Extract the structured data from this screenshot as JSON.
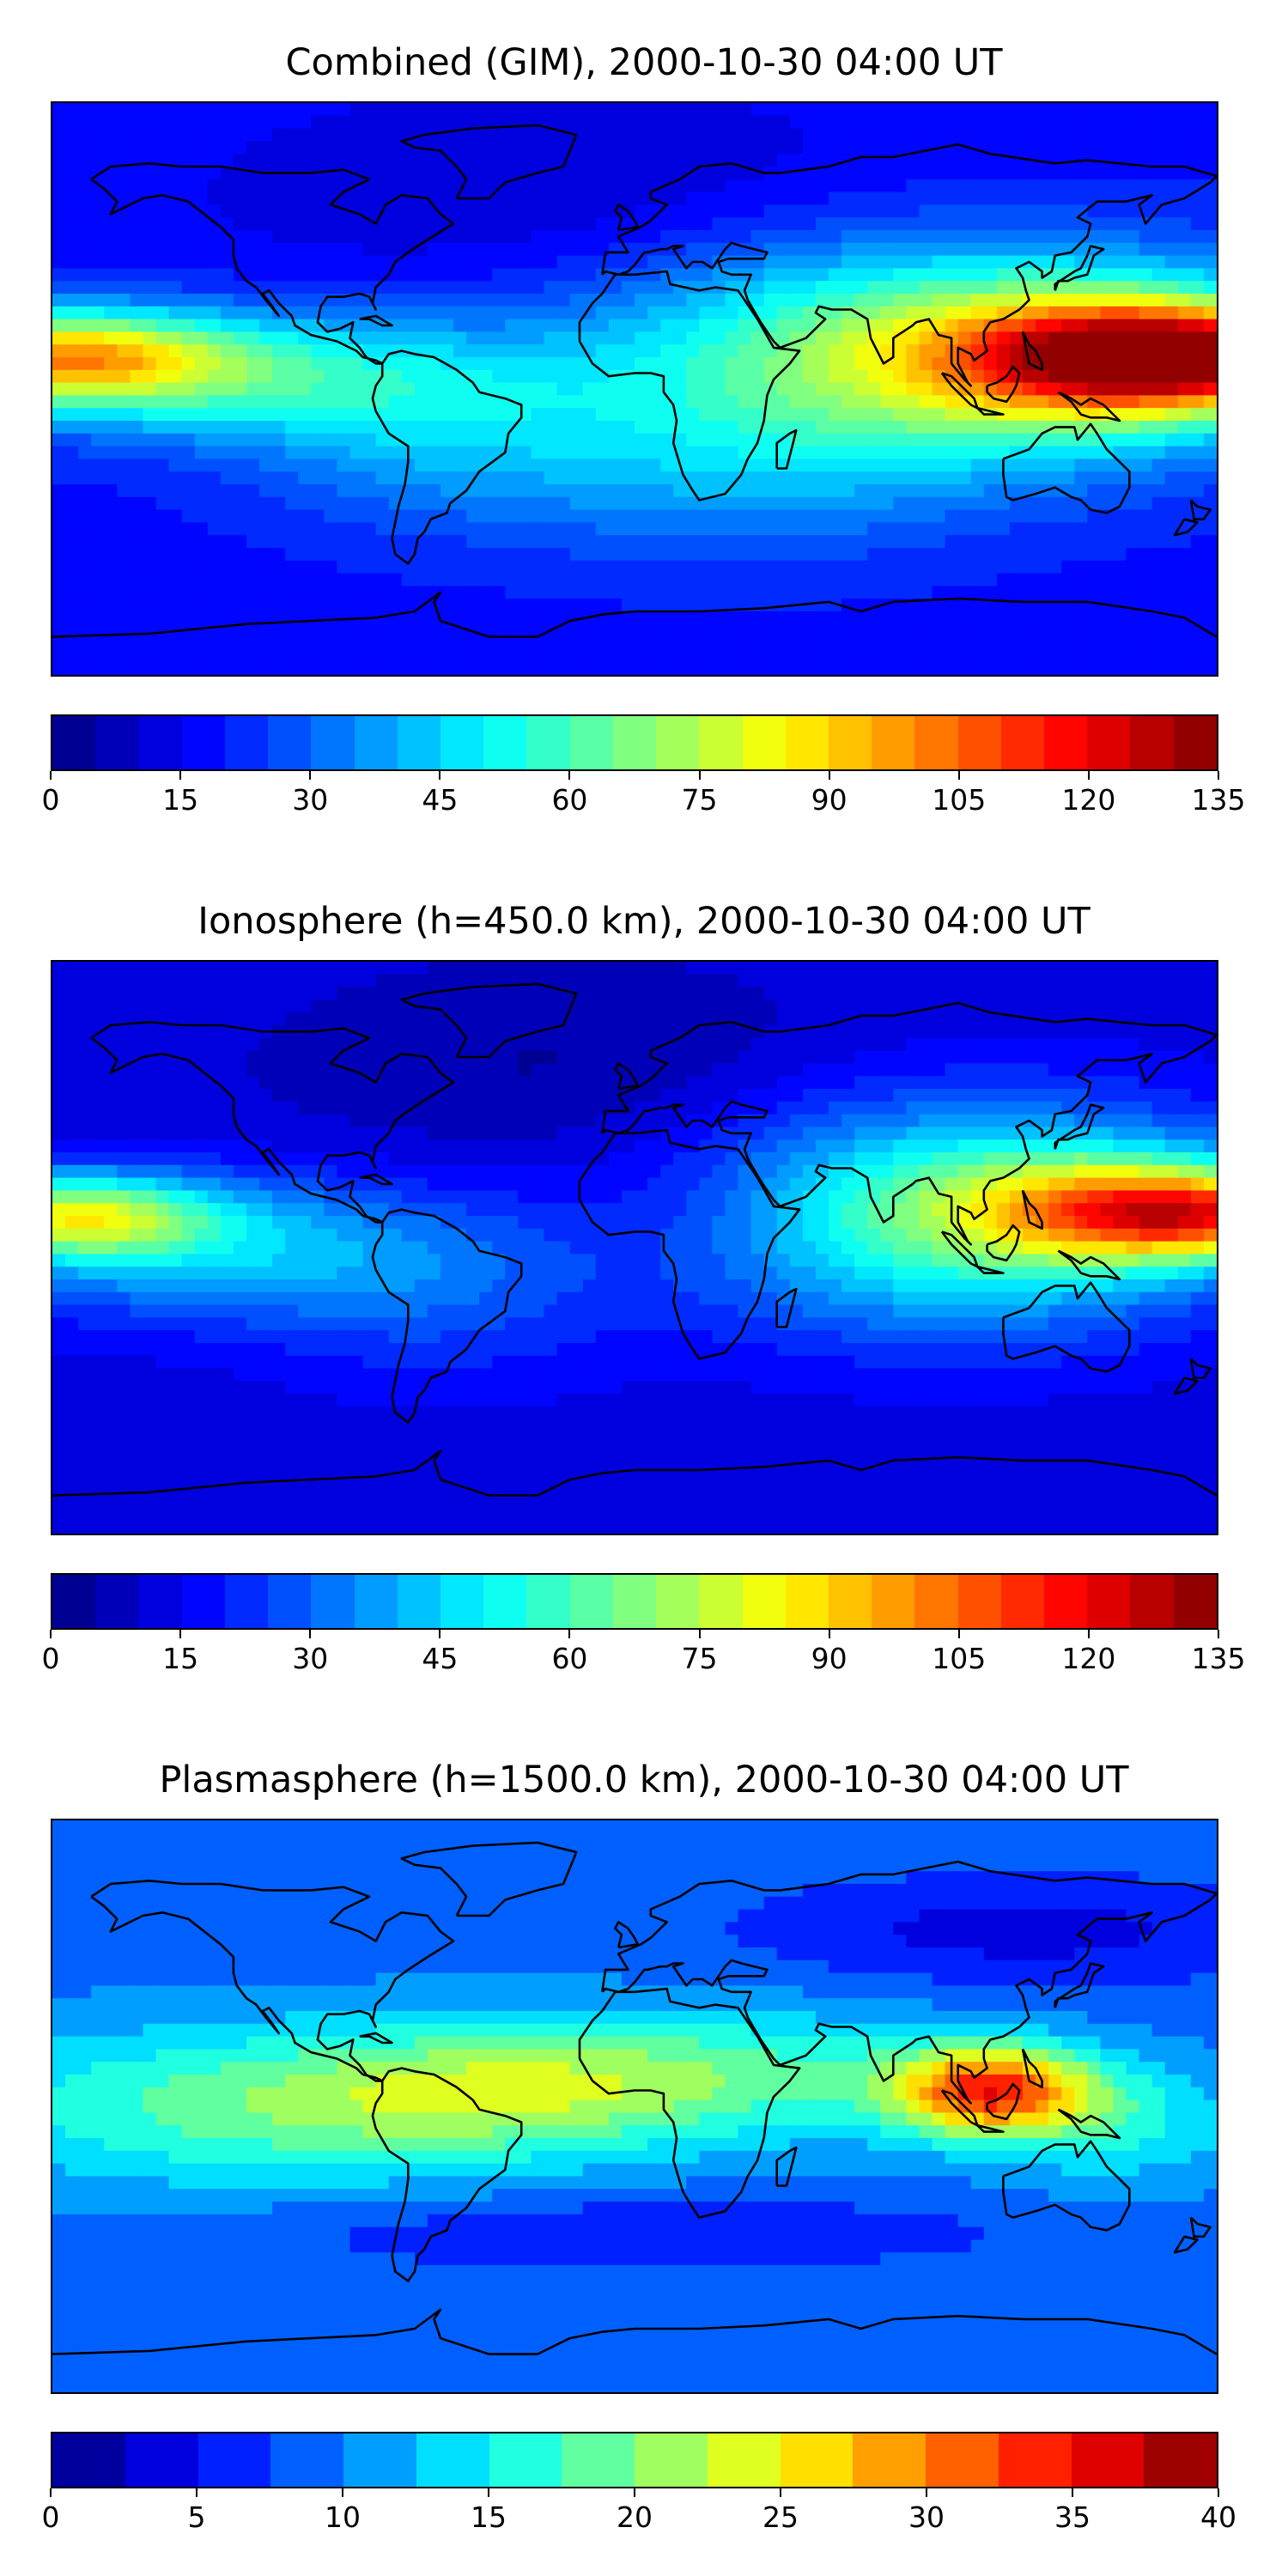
{
  "panels": [
    {
      "title": "Combined (GIM), 2000-10-30 04:00 UT",
      "colorbar": {
        "ticks": [
          "0",
          "15",
          "30",
          "45",
          "60",
          "75",
          "90",
          "105",
          "120",
          "135"
        ],
        "min": 0,
        "max": 135,
        "levels": 27
      },
      "field": "combined"
    },
    {
      "title": "Ionosphere  (h=450.0 km), 2000-10-30 04:00 UT",
      "colorbar": {
        "ticks": [
          "0",
          "15",
          "30",
          "45",
          "60",
          "75",
          "90",
          "105",
          "120",
          "135"
        ],
        "min": 0,
        "max": 135,
        "levels": 27
      },
      "field": "ionosphere"
    },
    {
      "title": "Plasmasphere (h=1500.0 km), 2000-10-30 04:00 UT",
      "colorbar": {
        "ticks": [
          "0",
          "5",
          "10",
          "15",
          "20",
          "25",
          "30",
          "35",
          "40"
        ],
        "min": 0,
        "max": 40,
        "levels": 16
      },
      "field": "plasmasphere"
    }
  ],
  "colormap": "jet"
}
